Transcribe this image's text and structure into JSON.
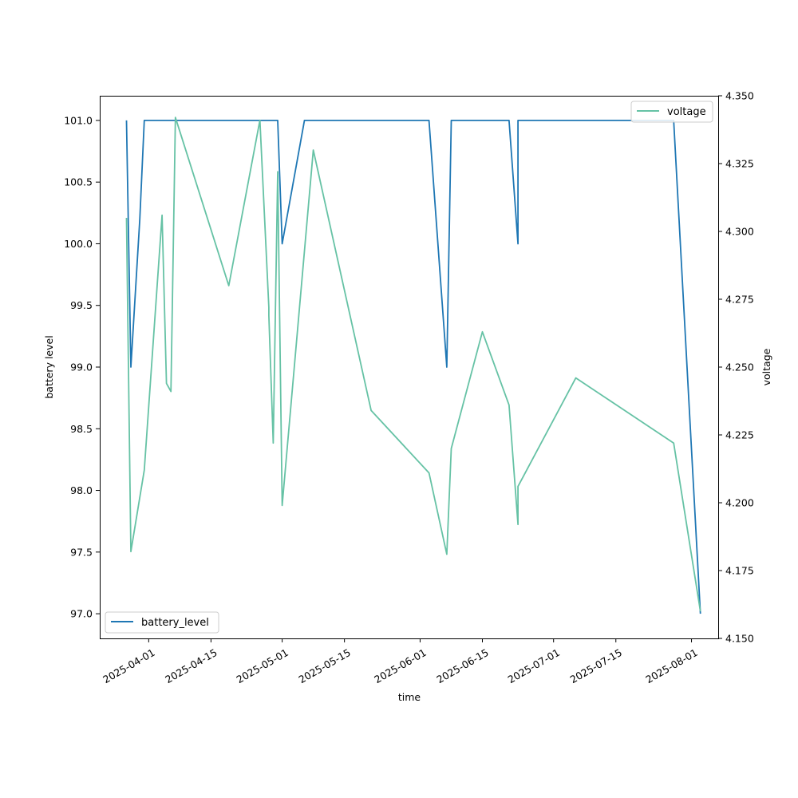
{
  "chart_data": {
    "type": "line",
    "xlabel": "time",
    "y_left_label": "battery level",
    "y_right_label": "voltage",
    "x_ticks": [
      "2025-04-01",
      "2025-04-15",
      "2025-05-01",
      "2025-05-15",
      "2025-06-01",
      "2025-06-15",
      "2025-07-01",
      "2025-07-15",
      "2025-08-01"
    ],
    "x_range": [
      "2025-03-21",
      "2025-08-07"
    ],
    "y_left_range": [
      96.8,
      101.2
    ],
    "y_left_ticks": [
      "97.0",
      "97.5",
      "98.0",
      "98.5",
      "99.0",
      "99.5",
      "100.0",
      "100.5",
      "101.0"
    ],
    "y_right_range": [
      4.15,
      4.35
    ],
    "y_right_ticks": [
      "4.150",
      "4.175",
      "4.200",
      "4.225",
      "4.250",
      "4.275",
      "4.300",
      "4.325",
      "4.350"
    ],
    "grid": false,
    "series": [
      {
        "name": "battery_level",
        "axis": "left",
        "color": "#1f77b4",
        "legend": "lower-left",
        "points": [
          [
            "2025-03-27",
            101.0
          ],
          [
            "2025-03-28",
            99.0
          ],
          [
            "2025-03-30",
            100.2
          ],
          [
            "2025-03-31",
            101.0
          ],
          [
            "2025-04-30",
            101.0
          ],
          [
            "2025-05-01",
            100.0
          ],
          [
            "2025-05-06",
            101.0
          ],
          [
            "2025-06-03",
            101.0
          ],
          [
            "2025-06-07",
            99.0
          ],
          [
            "2025-06-08",
            101.0
          ],
          [
            "2025-06-21",
            101.0
          ],
          [
            "2025-06-23",
            100.0
          ],
          [
            "2025-06-23",
            101.0
          ],
          [
            "2025-07-28",
            101.0
          ],
          [
            "2025-08-03",
            97.0
          ]
        ]
      },
      {
        "name": "voltage",
        "axis": "right",
        "color": "#66c2a5",
        "legend": "upper-right",
        "points": [
          [
            "2025-03-27",
            4.305
          ],
          [
            "2025-03-28",
            4.182
          ],
          [
            "2025-03-31",
            4.212
          ],
          [
            "2025-04-04",
            4.306
          ],
          [
            "2025-04-05",
            4.244
          ],
          [
            "2025-04-06",
            4.241
          ],
          [
            "2025-04-07",
            4.342
          ],
          [
            "2025-04-19",
            4.28
          ],
          [
            "2025-04-26",
            4.341
          ],
          [
            "2025-04-28",
            4.272
          ],
          [
            "2025-04-28",
            4.269
          ],
          [
            "2025-04-29",
            4.222
          ],
          [
            "2025-04-30",
            4.322
          ],
          [
            "2025-05-01",
            4.199
          ],
          [
            "2025-05-08",
            4.33
          ],
          [
            "2025-05-21",
            4.234
          ],
          [
            "2025-06-03",
            4.211
          ],
          [
            "2025-06-07",
            4.181
          ],
          [
            "2025-06-08",
            4.22
          ],
          [
            "2025-06-15",
            4.263
          ],
          [
            "2025-06-21",
            4.236
          ],
          [
            "2025-06-23",
            4.192
          ],
          [
            "2025-06-23",
            4.206
          ],
          [
            "2025-07-06",
            4.246
          ],
          [
            "2025-07-28",
            4.222
          ],
          [
            "2025-08-03",
            4.16
          ]
        ]
      }
    ]
  }
}
